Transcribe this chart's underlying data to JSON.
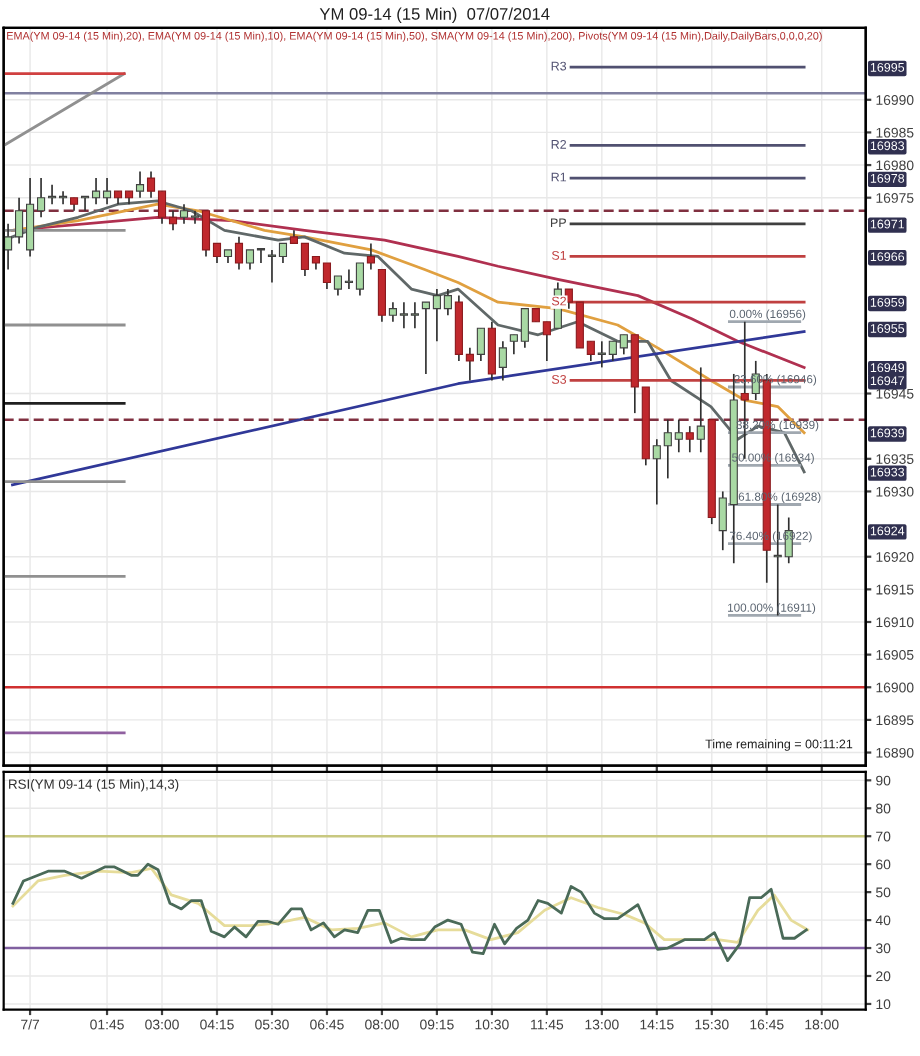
{
  "chart_data": [
    {
      "type": "candlestick",
      "title": "YM 09-14 (15 Min)  07/07/2014",
      "subtitle": "EMA(YM 09-14 (15 Min),20), EMA(YM 09-14 (15 Min),10), EMA(YM 09-14 (15 Min),50), SMA(YM 09-14 (15 Min),200), Pivots(YM 09-14 (15 Min),Daily,DailyBars,0,0,0,20)",
      "x": [
        -0.5,
        -0.25,
        0,
        0.25,
        0.5,
        0.75,
        1,
        1.25,
        1.5,
        1.75,
        2,
        2.25,
        2.5,
        2.75,
        3,
        3.25,
        3.5,
        3.75,
        4,
        4.25,
        4.5,
        4.75,
        5,
        5.25,
        5.5,
        5.75,
        6,
        6.25,
        6.5,
        6.75,
        7,
        7.25,
        7.5,
        7.75,
        8,
        8.25,
        8.5,
        8.75,
        9,
        9.25,
        9.5,
        9.75,
        10,
        10.25,
        10.5,
        10.75,
        11,
        11.25,
        11.5,
        11.75,
        12,
        12.25,
        12.5,
        12.75,
        13,
        13.25,
        13.5,
        13.75,
        14,
        14.25,
        14.5,
        14.75,
        15,
        15.25,
        15.5,
        15.75,
        16,
        16.25,
        16.5,
        16.75,
        17,
        17.25
      ],
      "ohlc": [
        [
          16967,
          16971,
          16964,
          16969
        ],
        [
          16969,
          16975,
          16968,
          16973
        ],
        [
          16967,
          16978,
          16966,
          16974
        ],
        [
          16973,
          16978,
          16972,
          16975
        ],
        [
          16975,
          16977,
          16974,
          16975
        ],
        [
          16975,
          16976,
          16974,
          16975
        ],
        [
          16975,
          16975,
          16973,
          16974
        ],
        [
          16975,
          16975,
          16973,
          16975
        ],
        [
          16975,
          16978,
          16974,
          16976
        ],
        [
          16975,
          16978,
          16974,
          16976
        ],
        [
          16976,
          16976,
          16974,
          16975
        ],
        [
          16976,
          16976,
          16974,
          16975
        ],
        [
          16976,
          16979,
          16975,
          16977
        ],
        [
          16978,
          16979,
          16975,
          16976
        ],
        [
          16976,
          16976,
          16971,
          16972
        ],
        [
          16972,
          16973,
          16970,
          16971
        ],
        [
          16972,
          16974,
          16971,
          16973
        ],
        [
          16972,
          16973,
          16971,
          16972
        ],
        [
          16973,
          16973,
          16966,
          16967
        ],
        [
          16968,
          16968,
          16965,
          16966
        ],
        [
          16966,
          16967,
          16965,
          16967
        ],
        [
          16968,
          16969,
          16964,
          16965
        ],
        [
          16965,
          16967,
          16964,
          16967
        ],
        [
          16967,
          16967,
          16965,
          16967
        ],
        [
          16966,
          16967,
          16962,
          16966
        ],
        [
          16966,
          16968,
          16965,
          16968
        ],
        [
          16969,
          16970,
          16968,
          16968
        ],
        [
          16968,
          16968,
          16963,
          16964
        ],
        [
          16966,
          16966,
          16964,
          16965
        ],
        [
          16965,
          16965,
          16961,
          16962
        ],
        [
          16961,
          16963,
          16960,
          16963
        ],
        [
          16962,
          16964,
          16961,
          16962
        ],
        [
          16961,
          16965,
          16960,
          16965
        ],
        [
          16966,
          16968,
          16964,
          16965
        ],
        [
          16964,
          16964,
          16956,
          16957
        ],
        [
          16957,
          16959,
          16956,
          16958
        ],
        [
          16957,
          16959,
          16955,
          16957
        ],
        [
          16957,
          16959,
          16955,
          16957
        ],
        [
          16958,
          16959,
          16948,
          16959
        ],
        [
          16958,
          16961,
          16953,
          16960
        ],
        [
          16958,
          16961,
          16957,
          16960
        ],
        [
          16959,
          16960,
          16950,
          16951
        ],
        [
          16951,
          16952,
          16947,
          16950
        ],
        [
          16951,
          16955,
          16950,
          16955
        ],
        [
          16955,
          16956,
          16947,
          16948
        ],
        [
          16949,
          16953,
          16947,
          16952
        ],
        [
          16953,
          16954,
          16951,
          16954
        ],
        [
          16953,
          16958,
          16952,
          16958
        ],
        [
          16958,
          16958,
          16956,
          16956
        ],
        [
          16956,
          16956,
          16950,
          16954
        ],
        [
          16955,
          16962,
          16955,
          16961
        ],
        [
          16961,
          16961,
          16958,
          16959
        ],
        [
          16959,
          16959,
          16952,
          16952
        ],
        [
          16953,
          16953,
          16950,
          16951
        ],
        [
          16951,
          16953,
          16949,
          16951
        ],
        [
          16951,
          16953,
          16950,
          16953
        ],
        [
          16952,
          16954,
          16951,
          16954
        ],
        [
          16954,
          16954,
          16942,
          16946
        ],
        [
          16946,
          16946,
          16934,
          16935
        ],
        [
          16935,
          16938,
          16928,
          16937
        ],
        [
          16937,
          16941,
          16932,
          16939
        ],
        [
          16938,
          16941,
          16936,
          16939
        ],
        [
          16939,
          16940,
          16936,
          16938
        ],
        [
          16938,
          16949,
          16936,
          16940
        ],
        [
          16941,
          16941,
          16925,
          16926
        ],
        [
          16924,
          16930,
          16921,
          16929
        ],
        [
          16928,
          16948,
          16919,
          16944
        ],
        [
          16945,
          16956,
          16935,
          16944
        ],
        [
          16945,
          16950,
          16944,
          16948
        ],
        [
          16947,
          16948,
          16916,
          16921
        ],
        [
          16920,
          16928,
          16911,
          16920
        ],
        [
          16920,
          16926,
          16919,
          16924
        ]
      ],
      "series": [
        {
          "type": "line",
          "color": "#b03050",
          "x": [
            -0.4,
            2.9,
            4.58,
            6.24,
            8.06,
            9.73,
            10.64,
            12.0,
            13.82,
            15.03,
            16.09,
            17.6
          ],
          "values": [
            16970,
            16972,
            16971.5,
            16970,
            16968.5,
            16966,
            16964.5,
            16962.5,
            16960,
            16956.5,
            16953,
            16949
          ]
        },
        {
          "type": "line",
          "color": "#e0a040",
          "x": [
            -0.4,
            1.09,
            2.9,
            3.82,
            5.33,
            6.24,
            7.76,
            8.97,
            9.73,
            10.64,
            12.0,
            13.36,
            14.27,
            15.48,
            16.24,
            17.0,
            17.6
          ],
          "values": [
            16970,
            16971.5,
            16974,
            16973,
            16970,
            16969,
            16967,
            16964,
            16962,
            16959,
            16958,
            16955.5,
            16952,
            16947,
            16944,
            16943,
            16939
          ]
        },
        {
          "type": "line",
          "color": "#606868",
          "x": [
            -0.4,
            0.18,
            1.09,
            2.0,
            2.9,
            3.67,
            4.42,
            5.64,
            6.24,
            7.15,
            7.91,
            8.67,
            9.27,
            9.73,
            10.64,
            11.55,
            12.45,
            13.36,
            14.04,
            14.57,
            15.48,
            16.09,
            16.55,
            17.15,
            17.6
          ],
          "values": [
            16969,
            16970.5,
            16972,
            16974,
            16974.5,
            16973,
            16970,
            16968.5,
            16969,
            16966.5,
            16966,
            16961,
            16960,
            16961,
            16955.5,
            16954,
            16956,
            16953,
            16953,
            16947,
            16943,
            16938,
            16940,
            16939,
            16933
          ]
        },
        {
          "type": "line",
          "color": "#303898",
          "x": [
            -0.4,
            9.73,
            17.6
          ],
          "values": [
            16931,
            16946.5,
            16954.5
          ]
        },
        {
          "type": "line",
          "color": "#909090",
          "x": [
            -0.6,
            2.14
          ],
          "values": [
            16983,
            16994
          ]
        },
        {
          "type": "line",
          "color": "#d04040",
          "x": [
            -0.6,
            2.14
          ],
          "values": [
            16994,
            16994
          ]
        },
        {
          "type": "line",
          "color": "#909090",
          "x": [
            -0.6,
            2.14
          ],
          "values": [
            16970,
            16970
          ]
        },
        {
          "type": "line",
          "color": "#909090",
          "x": [
            -0.6,
            2.14
          ],
          "values": [
            16955.5,
            16955.5
          ]
        },
        {
          "type": "line",
          "color": "#202020",
          "x": [
            -0.6,
            2.14
          ],
          "values": [
            16943.5,
            16943.5
          ]
        },
        {
          "type": "line",
          "color": "#909090",
          "x": [
            -0.6,
            2.14
          ],
          "values": [
            16931.5,
            16931.5
          ]
        },
        {
          "type": "line",
          "color": "#909090",
          "x": [
            -0.6,
            2.14
          ],
          "values": [
            16917,
            16917
          ]
        },
        {
          "type": "line",
          "color": "#9060a0",
          "x": [
            -0.6,
            2.14
          ],
          "values": [
            16893,
            16893
          ]
        },
        {
          "type": "line",
          "color": "#a0a8b0",
          "x": [
            15.9,
            17.5
          ],
          "values": [
            16956,
            16956
          ]
        },
        {
          "type": "line",
          "color": "#a0a8b0",
          "x": [
            15.9,
            17.5
          ],
          "values": [
            16946,
            16946
          ]
        },
        {
          "type": "line",
          "color": "#a0a8b0",
          "x": [
            15.9,
            17.5
          ],
          "values": [
            16939,
            16939
          ]
        },
        {
          "type": "line",
          "color": "#a0a8b0",
          "x": [
            15.9,
            17.5
          ],
          "values": [
            16934,
            16934
          ]
        },
        {
          "type": "line",
          "color": "#a0a8b0",
          "x": [
            15.9,
            17.5
          ],
          "values": [
            16928,
            16928
          ]
        },
        {
          "type": "line",
          "color": "#a0a8b0",
          "x": [
            15.9,
            17.5
          ],
          "values": [
            16922,
            16922
          ]
        },
        {
          "type": "line",
          "color": "#a0a8b0",
          "x": [
            15.9,
            17.5
          ],
          "values": [
            16911,
            16911
          ]
        },
        {
          "type": "line",
          "name": "R3",
          "color": "#505070",
          "x": [
            12.3,
            17.6
          ],
          "values": [
            16995,
            16995
          ]
        },
        {
          "type": "line",
          "name": "R2",
          "color": "#505070",
          "x": [
            12.3,
            17.6
          ],
          "values": [
            16983,
            16983
          ]
        },
        {
          "type": "line",
          "name": "R1",
          "color": "#505070",
          "x": [
            12.3,
            17.6
          ],
          "values": [
            16978,
            16978
          ]
        },
        {
          "type": "line",
          "name": "PP",
          "color": "#404040",
          "x": [
            12.3,
            17.6
          ],
          "values": [
            16971,
            16971
          ]
        },
        {
          "type": "line",
          "name": "S1",
          "color": "#c04040",
          "x": [
            12.3,
            17.6
          ],
          "values": [
            16966,
            16966
          ]
        },
        {
          "type": "line",
          "name": "S2",
          "color": "#c04040",
          "x": [
            12.3,
            17.6
          ],
          "values": [
            16959,
            16959
          ]
        },
        {
          "type": "line",
          "name": "S3",
          "color": "#c04040",
          "x": [
            12.3,
            17.6
          ],
          "values": [
            16947,
            16947
          ]
        }
      ],
      "ref_lines": [
        {
          "axis": "y",
          "value": 16991,
          "color": "#8080a0",
          "line_style": "solid"
        },
        {
          "axis": "y",
          "value": 16973,
          "color": "#803040",
          "line_style": "dashed"
        },
        {
          "axis": "y",
          "value": 16941,
          "color": "#803040",
          "line_style": "dashed"
        },
        {
          "axis": "y",
          "value": 16900,
          "color": "#d03030",
          "line_style": "solid"
        }
      ],
      "annotations": [
        {
          "text": "0.00% (16956)",
          "x": 15.9,
          "y": 16956
        },
        {
          "text": "23.60% (16946)",
          "x": 16.0,
          "y": 16946
        },
        {
          "text": "38.20% (16939)",
          "x": 16.05,
          "y": 16939
        },
        {
          "text": "50.00% (16934)",
          "x": 15.95,
          "y": 16934
        },
        {
          "text": "61.80% (16928)",
          "x": 16.1,
          "y": 16928
        },
        {
          "text": "76.40% (16922)",
          "x": 15.9,
          "y": 16922
        },
        {
          "text": "100.00% (16911)",
          "x": 15.85,
          "y": 16911
        },
        "Time remaining = 00:11:21"
      ],
      "xlim": [
        -0.6,
        19.0
      ],
      "xticks": [
        {
          "value": 0,
          "label": null
        },
        {
          "value": 1.75,
          "label": null
        },
        {
          "value": 3,
          "label": null
        },
        {
          "value": 4.25,
          "label": null
        },
        {
          "value": 5.5,
          "label": null
        },
        {
          "value": 6.75,
          "label": null
        },
        {
          "value": 8,
          "label": null
        },
        {
          "value": 9.25,
          "label": null
        },
        {
          "value": 10.5,
          "label": null
        },
        {
          "value": 11.75,
          "label": null
        },
        {
          "value": 13,
          "label": null
        },
        {
          "value": 14.25,
          "label": null
        },
        {
          "value": 15.5,
          "label": null
        },
        {
          "value": 16.75,
          "label": null
        },
        {
          "value": 18,
          "label": null
        }
      ],
      "ylim": [
        16888,
        17001
      ],
      "yticks": [
        16890,
        16895,
        16900,
        16905,
        16910,
        16915,
        16920,
        16930,
        16935,
        16945,
        16975,
        16980,
        16985,
        16990
      ],
      "y2lim": [
        16888,
        17001
      ],
      "y2ticks": [
        {
          "value": 16995,
          "label": "16995"
        },
        {
          "value": 16983,
          "label": "16983"
        },
        {
          "value": 16978,
          "label": "16978"
        },
        {
          "value": 16971,
          "label": "16971"
        },
        {
          "value": 16966,
          "label": "16966"
        },
        {
          "value": 16959,
          "label": "16959"
        },
        {
          "value": 16955,
          "label": "16955"
        },
        {
          "value": 16949,
          "label": "16949"
        },
        {
          "value": 16947,
          "label": "16947"
        },
        {
          "value": 16939,
          "label": "16939"
        },
        {
          "value": 16933,
          "label": "16933"
        },
        {
          "value": 16924,
          "label": "16924"
        }
      ],
      "grid": true,
      "tick_labels": "y"
    },
    {
      "type": "line",
      "title": "RSI(YM 09-14 (15 Min),14,3)",
      "series": [
        {
          "color": "#e6dc9a",
          "x": [
            -0.39,
            0.18,
            0.79,
            1.55,
            2.3,
            2.76,
            3.21,
            3.82,
            4.42,
            5.03,
            5.64,
            6.24,
            6.85,
            7.45,
            8.06,
            8.67,
            9.27,
            9.88,
            10.48,
            11.09,
            11.7,
            12.3,
            12.91,
            13.52,
            13.97,
            14.42,
            15.03,
            15.64,
            16.09,
            16.55,
            16.92,
            17.3,
            17.68
          ],
          "values": [
            45,
            54,
            56,
            57.5,
            57,
            58.5,
            49,
            46,
            38,
            38,
            39,
            41,
            36.5,
            37,
            39,
            34,
            36.5,
            36.5,
            33,
            35.5,
            43.5,
            48,
            44.5,
            42,
            39,
            33,
            33,
            33,
            32,
            43.5,
            49,
            40,
            36.5
          ]
        },
        {
          "color": "#4a6a58",
          "x": [
            -0.39,
            -0.15,
            0.41,
            0.79,
            1.17,
            1.7,
            1.92,
            2.3,
            2.45,
            2.68,
            2.91,
            3.18,
            3.44,
            3.67,
            3.89,
            4.12,
            4.42,
            4.65,
            4.91,
            5.18,
            5.41,
            5.64,
            5.94,
            6.17,
            6.39,
            6.67,
            6.92,
            7.15,
            7.45,
            7.68,
            7.94,
            8.21,
            8.44,
            8.67,
            8.97,
            9.2,
            9.5,
            9.8,
            10.06,
            10.3,
            10.56,
            10.79,
            11.06,
            11.32,
            11.55,
            11.77,
            12.08,
            12.3,
            12.53,
            12.83,
            13.06,
            13.36,
            13.82,
            14.27,
            14.5,
            14.88,
            15.33,
            15.56,
            15.86,
            16.14,
            16.36,
            16.62,
            16.85,
            17.12,
            17.38,
            17.65
          ],
          "values": [
            46,
            54,
            57.5,
            57.5,
            55,
            59,
            59,
            56,
            56,
            60,
            58,
            46,
            44,
            47,
            47,
            36,
            34,
            37.5,
            34,
            39.5,
            39.5,
            38.5,
            44,
            44,
            36.5,
            39,
            34,
            36.5,
            35.5,
            43.5,
            43.5,
            32,
            33.5,
            33,
            33,
            37.5,
            40,
            38.5,
            28.5,
            28,
            38.5,
            31.5,
            37,
            40,
            47,
            46,
            42.5,
            52,
            50,
            42.5,
            40.5,
            40.5,
            45.5,
            29.5,
            30,
            33,
            33,
            35.5,
            25.5,
            31.5,
            48,
            48,
            51,
            33.5,
            33.5,
            36.5
          ]
        }
      ],
      "ref_lines": [
        {
          "axis": "y",
          "value": 70,
          "color": "#c8c880",
          "line_style": "solid"
        },
        {
          "axis": "y",
          "value": 30,
          "color": "#8060a0",
          "line_style": "solid"
        }
      ],
      "xlim": [
        -0.6,
        19.0
      ],
      "xticks": [
        {
          "value": 0,
          "label": "7/7"
        },
        {
          "value": 1.75,
          "label": "01:45"
        },
        {
          "value": 3,
          "label": "03:00"
        },
        {
          "value": 4.25,
          "label": "04:15"
        },
        {
          "value": 5.5,
          "label": "05:30"
        },
        {
          "value": 6.75,
          "label": "06:45"
        },
        {
          "value": 8,
          "label": "08:00"
        },
        {
          "value": 9.25,
          "label": "09:15"
        },
        {
          "value": 10.5,
          "label": "10:30"
        },
        {
          "value": 11.75,
          "label": "11:45"
        },
        {
          "value": 13,
          "label": "13:00"
        },
        {
          "value": 14.25,
          "label": "14:15"
        },
        {
          "value": 15.5,
          "label": "15:30"
        },
        {
          "value": 16.75,
          "label": "16:45"
        },
        {
          "value": 18,
          "label": "18:00"
        }
      ],
      "ylim": [
        8,
        93
      ],
      "yticks": [
        10,
        20,
        30,
        40,
        50,
        60,
        70,
        80,
        90
      ],
      "grid": true
    }
  ]
}
